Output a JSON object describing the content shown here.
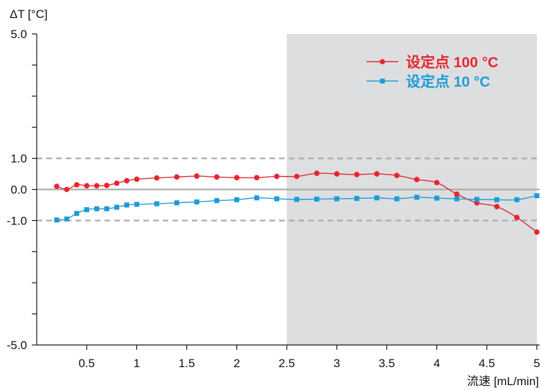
{
  "chart_data": {
    "type": "line",
    "ylabel": "ΔT [°C]",
    "xlabel": "流速 [mL/min]",
    "xlim": [
      0,
      5
    ],
    "ylim": [
      -5,
      5
    ],
    "x_ticks": [
      {
        "value": 0.5,
        "label": "0.5"
      },
      {
        "value": 1,
        "label": "1"
      },
      {
        "value": 1.5,
        "label": "1.5"
      },
      {
        "value": 2,
        "label": "2"
      },
      {
        "value": 2.5,
        "label": "2.5"
      },
      {
        "value": 3,
        "label": "3"
      },
      {
        "value": 3.5,
        "label": "3.5"
      },
      {
        "value": 4,
        "label": "4"
      },
      {
        "value": 4.5,
        "label": "4.5"
      },
      {
        "value": 5,
        "label": "5"
      }
    ],
    "y_ticks": [
      {
        "value": 5,
        "label": "5.0"
      },
      {
        "value": 1,
        "label": "1.0"
      },
      {
        "value": 0,
        "label": "0.0"
      },
      {
        "value": -1,
        "label": "-1.0"
      },
      {
        "value": -5,
        "label": "-5.0"
      }
    ],
    "y_minor_ticks": [
      4,
      3,
      2,
      -2,
      -3,
      -4
    ],
    "reference_lines": [
      {
        "y": 1,
        "style": "dashed",
        "color": "#aaaaaa"
      },
      {
        "y": 0,
        "style": "solid",
        "color": "#aaaaaa"
      },
      {
        "y": -1,
        "style": "dashed",
        "color": "#aaaaaa"
      }
    ],
    "shaded_region": {
      "x_from": 2.5,
      "x_to": 5,
      "color": "#dddee0"
    },
    "legend_position": "top-right",
    "series": [
      {
        "name": "设定点 100 °C",
        "color": "#e8252f",
        "marker": "circle",
        "x": [
          0.2,
          0.3,
          0.4,
          0.5,
          0.6,
          0.7,
          0.8,
          0.9,
          1.0,
          1.2,
          1.4,
          1.6,
          1.8,
          2.0,
          2.2,
          2.4,
          2.6,
          2.8,
          3.0,
          3.2,
          3.4,
          3.6,
          3.8,
          4.0,
          4.2,
          4.4,
          4.6,
          4.8,
          5.0
        ],
        "y": [
          0.1,
          0.0,
          0.15,
          0.12,
          0.12,
          0.13,
          0.2,
          0.28,
          0.33,
          0.37,
          0.4,
          0.43,
          0.4,
          0.38,
          0.38,
          0.42,
          0.42,
          0.52,
          0.5,
          0.48,
          0.5,
          0.45,
          0.32,
          0.22,
          -0.15,
          -0.43,
          -0.55,
          -0.9,
          -1.37
        ]
      },
      {
        "name": "设定点 10 °C",
        "color": "#1d9bd7",
        "marker": "square",
        "x": [
          0.2,
          0.3,
          0.4,
          0.5,
          0.6,
          0.7,
          0.8,
          0.9,
          1.0,
          1.2,
          1.4,
          1.6,
          1.8,
          2.0,
          2.2,
          2.4,
          2.6,
          2.8,
          3.0,
          3.2,
          3.4,
          3.6,
          3.8,
          4.0,
          4.2,
          4.4,
          4.6,
          4.8,
          5.0
        ],
        "y": [
          -0.98,
          -0.95,
          -0.77,
          -0.65,
          -0.62,
          -0.62,
          -0.57,
          -0.5,
          -0.48,
          -0.46,
          -0.43,
          -0.4,
          -0.36,
          -0.33,
          -0.27,
          -0.3,
          -0.32,
          -0.31,
          -0.3,
          -0.29,
          -0.27,
          -0.3,
          -0.25,
          -0.28,
          -0.3,
          -0.32,
          -0.33,
          -0.33,
          -0.2
        ]
      }
    ]
  }
}
